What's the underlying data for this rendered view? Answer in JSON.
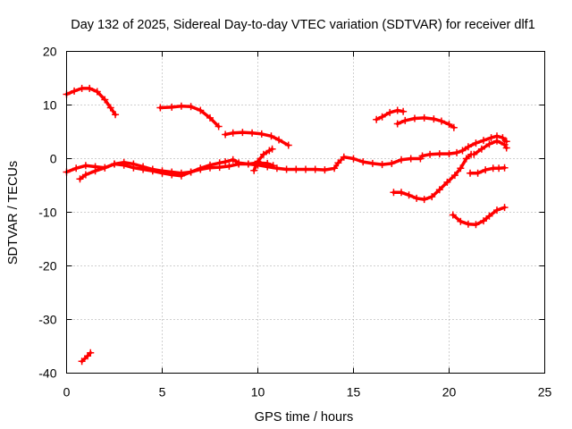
{
  "chart_data": {
    "type": "scatter",
    "title": "Day 132 of 2025, Sidereal Day-to-day VTEC variation (SDTVAR) for receiver dlf1",
    "xlabel": "GPS time / hours",
    "ylabel": "SDTVAR / TECUs",
    "xlim": [
      0,
      25
    ],
    "ylim": [
      -40,
      20
    ],
    "xticks": [
      0,
      5,
      10,
      15,
      20,
      25
    ],
    "yticks": [
      -40,
      -30,
      -20,
      -10,
      0,
      10,
      20
    ],
    "grid": true,
    "legend": "none",
    "colors": {
      "series": "#ff0000",
      "axes": "#000000",
      "grid": "#a0a0a0"
    },
    "series": [
      {
        "name": "arc-1",
        "points": [
          [
            0.0,
            12.0
          ],
          [
            0.4,
            12.6
          ],
          [
            0.8,
            13.1
          ],
          [
            1.2,
            13.1
          ],
          [
            1.6,
            12.5
          ],
          [
            2.0,
            11.0
          ],
          [
            2.3,
            9.5
          ],
          [
            2.55,
            8.2
          ]
        ]
      },
      {
        "name": "arc-2",
        "points": [
          [
            0.8,
            -37.8
          ],
          [
            1.1,
            -36.8
          ],
          [
            1.25,
            -36.2
          ]
        ]
      },
      {
        "name": "arc-3",
        "points": [
          [
            0.0,
            -2.5
          ],
          [
            0.5,
            -1.8
          ],
          [
            1.0,
            -1.3
          ],
          [
            1.5,
            -1.5
          ],
          [
            2.0,
            -1.7
          ],
          [
            2.5,
            -1.0
          ],
          [
            3.0,
            -1.2
          ],
          [
            3.5,
            -1.7
          ],
          [
            4.0,
            -2.0
          ],
          [
            4.5,
            -2.3
          ],
          [
            5.0,
            -2.7
          ],
          [
            5.5,
            -3.0
          ],
          [
            6.0,
            -3.2
          ],
          [
            6.5,
            -2.5
          ],
          [
            7.0,
            -2.0
          ],
          [
            7.5,
            -1.7
          ],
          [
            8.0,
            -1.6
          ],
          [
            8.5,
            -1.4
          ],
          [
            9.0,
            -1.0
          ],
          [
            9.5,
            -1.0
          ],
          [
            10.0,
            -1.2
          ],
          [
            10.5,
            -1.5
          ],
          [
            11.0,
            -1.8
          ],
          [
            11.5,
            -2.0
          ],
          [
            12.0,
            -2.0
          ],
          [
            12.5,
            -2.0
          ],
          [
            13.0,
            -2.0
          ],
          [
            13.5,
            -2.1
          ],
          [
            14.0,
            -1.8
          ],
          [
            14.2,
            -0.8
          ],
          [
            14.5,
            0.3
          ],
          [
            15.0,
            0.0
          ],
          [
            15.5,
            -0.6
          ],
          [
            16.0,
            -0.9
          ],
          [
            16.5,
            -1.1
          ],
          [
            17.0,
            -0.9
          ],
          [
            17.5,
            -0.2
          ],
          [
            18.0,
            0.0
          ],
          [
            18.5,
            0.0
          ]
        ]
      },
      {
        "name": "arc-4",
        "points": [
          [
            0.7,
            -3.8
          ],
          [
            1.0,
            -3.0
          ],
          [
            1.5,
            -2.3
          ],
          [
            2.0,
            -1.7
          ],
          [
            2.5,
            -1.0
          ],
          [
            3.0,
            -0.7
          ],
          [
            3.5,
            -1.0
          ],
          [
            4.0,
            -1.5
          ],
          [
            4.5,
            -2.0
          ],
          [
            5.0,
            -2.3
          ],
          [
            5.5,
            -2.5
          ],
          [
            6.0,
            -2.7
          ],
          [
            6.5,
            -2.5
          ],
          [
            7.0,
            -1.8
          ],
          [
            7.5,
            -1.2
          ],
          [
            8.0,
            -0.8
          ],
          [
            8.3,
            -0.6
          ],
          [
            8.7,
            -0.2
          ],
          [
            9.0,
            -0.8
          ],
          [
            9.5,
            -1.0
          ],
          [
            10.0,
            -0.8
          ],
          [
            10.5,
            -0.9
          ],
          [
            10.8,
            -1.3
          ]
        ]
      },
      {
        "name": "arc-5",
        "points": [
          [
            9.8,
            -2.2
          ],
          [
            10.0,
            -0.5
          ],
          [
            10.3,
            0.8
          ],
          [
            10.6,
            1.5
          ],
          [
            10.75,
            1.8
          ]
        ]
      },
      {
        "name": "arc-6",
        "points": [
          [
            4.9,
            9.5
          ],
          [
            5.5,
            9.6
          ],
          [
            6.0,
            9.8
          ],
          [
            6.5,
            9.7
          ],
          [
            7.0,
            9.0
          ],
          [
            7.5,
            7.6
          ],
          [
            7.95,
            6.0
          ]
        ]
      },
      {
        "name": "arc-7",
        "points": [
          [
            8.3,
            4.5
          ],
          [
            8.7,
            4.8
          ],
          [
            9.2,
            4.9
          ],
          [
            9.7,
            4.8
          ],
          [
            10.2,
            4.6
          ],
          [
            10.7,
            4.2
          ],
          [
            11.1,
            3.5
          ],
          [
            11.6,
            2.5
          ]
        ]
      },
      {
        "name": "arc-8",
        "points": [
          [
            16.2,
            7.3
          ],
          [
            16.5,
            7.8
          ],
          [
            16.9,
            8.6
          ],
          [
            17.3,
            9.0
          ],
          [
            17.6,
            8.8
          ]
        ]
      },
      {
        "name": "arc-9",
        "points": [
          [
            17.3,
            6.5
          ],
          [
            17.7,
            7.1
          ],
          [
            18.2,
            7.5
          ],
          [
            18.7,
            7.6
          ],
          [
            19.2,
            7.4
          ],
          [
            19.6,
            7.0
          ],
          [
            20.0,
            6.4
          ],
          [
            20.25,
            5.8
          ]
        ]
      },
      {
        "name": "arc-10",
        "points": [
          [
            17.1,
            -6.3
          ],
          [
            17.5,
            -6.3
          ],
          [
            17.9,
            -6.8
          ],
          [
            18.3,
            -7.4
          ],
          [
            18.7,
            -7.6
          ],
          [
            19.1,
            -7.1
          ],
          [
            19.5,
            -5.8
          ],
          [
            19.9,
            -4.4
          ],
          [
            20.3,
            -3.1
          ],
          [
            20.6,
            -1.8
          ],
          [
            20.9,
            0.0
          ],
          [
            21.15,
            0.8
          ]
        ]
      },
      {
        "name": "arc-11",
        "points": [
          [
            18.6,
            0.5
          ],
          [
            19.0,
            0.8
          ],
          [
            19.5,
            0.9
          ],
          [
            20.0,
            0.9
          ],
          [
            20.4,
            1.1
          ],
          [
            20.7,
            1.5
          ],
          [
            21.0,
            2.2
          ],
          [
            21.4,
            2.9
          ],
          [
            21.8,
            3.4
          ],
          [
            22.2,
            3.9
          ],
          [
            22.5,
            4.2
          ],
          [
            22.8,
            3.9
          ],
          [
            23.0,
            3.2
          ]
        ]
      },
      {
        "name": "arc-12",
        "points": [
          [
            21.3,
            0.8
          ],
          [
            21.7,
            1.8
          ],
          [
            22.1,
            2.7
          ],
          [
            22.5,
            3.3
          ],
          [
            22.9,
            2.6
          ],
          [
            23.0,
            2.0
          ]
        ]
      },
      {
        "name": "arc-13",
        "points": [
          [
            20.2,
            -10.5
          ],
          [
            20.6,
            -11.7
          ],
          [
            21.0,
            -12.2
          ],
          [
            21.4,
            -12.3
          ],
          [
            21.8,
            -11.6
          ],
          [
            22.1,
            -10.7
          ],
          [
            22.5,
            -9.6
          ],
          [
            22.9,
            -9.1
          ]
        ]
      },
      {
        "name": "arc-14",
        "points": [
          [
            21.1,
            -2.7
          ],
          [
            21.5,
            -2.7
          ],
          [
            21.9,
            -2.1
          ],
          [
            22.3,
            -1.8
          ],
          [
            22.6,
            -1.8
          ],
          [
            22.9,
            -1.7
          ]
        ]
      }
    ]
  }
}
